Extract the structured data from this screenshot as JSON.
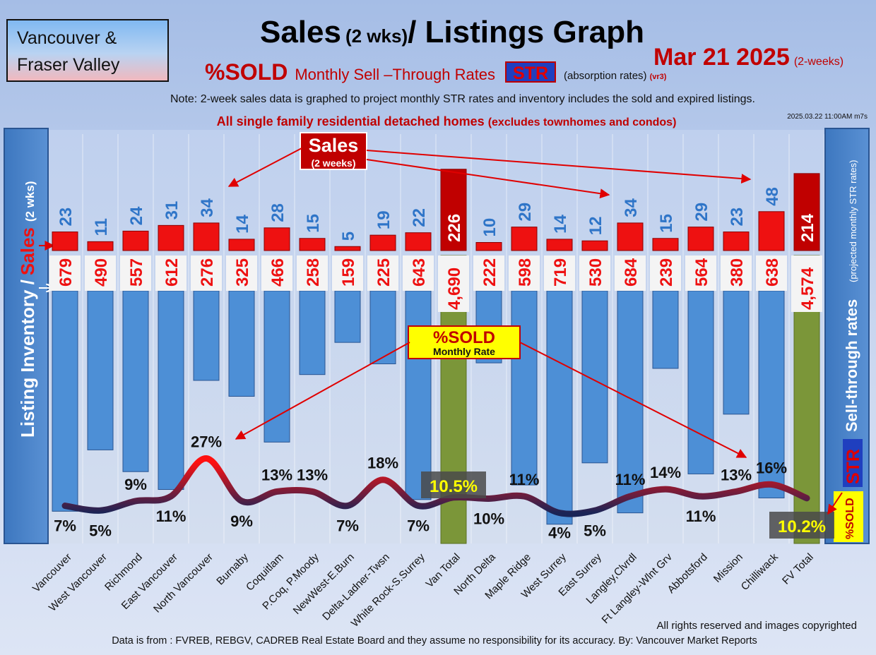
{
  "header": {
    "region_line1": "Vancouver &",
    "region_line2": "Fraser Valley",
    "title_main": "Sales",
    "title_paren": "(2 wks)",
    "title_rest": "/ Listings Graph",
    "date_main": "Mar 21  2025",
    "date_sub": "(2-weeks)",
    "str_line_sold": "%SOLD",
    "str_line_rest": "Monthly Sell –Through Rates",
    "str_badge": "STR",
    "str_absorption": "(absorption rates)",
    "str_version": "(vr3)",
    "note": "Note: 2-week sales data is graphed to project monthly STR rates and inventory includes the sold and expired listings.",
    "subtitle_main": "All single family residential detached homes",
    "subtitle_paren": "(excludes townhomes and condos)",
    "timestamp": "2025.03.22 11:00AM m7s"
  },
  "left_axis": {
    "inventory": "Listing Inventory /",
    "sales": "Sales",
    "paren": "(2  wks)"
  },
  "right_axis": {
    "main": "Sell-through rates",
    "paren": "(projected monthly STR rates)",
    "badge": "STR"
  },
  "callouts": {
    "sales_title": "Sales",
    "sales_sub": "(2 weeks)",
    "sold_title": "%SOLD",
    "sold_sub": "Monthly Rate"
  },
  "right_label": {
    "sold": "%SOLD"
  },
  "footer": {
    "rights": "All rights reserved and  images copyrighted",
    "source": "Data is from : FVREB, REBGV, CADREB Real Estate Board and they assume no responsibility for its accuracy. By: Vancouver Market Reports"
  },
  "colors": {
    "sales_bar": "#ee1111",
    "inventory_bar": "#4d8fd6",
    "total_bar": "#7b9639",
    "total_sales_bar": "#c00000",
    "title_red": "#c00000",
    "label_blue": "#2f75c8",
    "str_badge": "#1f3fbf"
  },
  "chart_data": {
    "type": "bar",
    "categories": [
      "Vancouver",
      "West Vancouver",
      "Richmond",
      "East Vancouver",
      "North Vancouver",
      "Burnaby",
      "Coquitlam",
      "P.Coq, P.Moody",
      "NewWest-E.Burn",
      "Delta-Ladner-Twsn",
      "White Rock-S.Surrey",
      "Van Total",
      "North Delta",
      "Maple Ridge",
      "West Surrey",
      "East Surrey",
      "Langley,Clvrdl",
      "Ft Langley-Wlnt Grv",
      "Abbotsford",
      "Mission",
      "Chilliwack",
      "FV Total"
    ],
    "series": [
      {
        "name": "Sales",
        "values": [
          23,
          11,
          24,
          31,
          34,
          14,
          28,
          15,
          5,
          19,
          22,
          226,
          10,
          29,
          14,
          12,
          34,
          15,
          29,
          23,
          48,
          214
        ]
      },
      {
        "name": "Listing Inventory",
        "values": [
          679,
          490,
          557,
          612,
          276,
          325,
          466,
          258,
          159,
          225,
          643,
          4690,
          222,
          598,
          719,
          530,
          684,
          239,
          564,
          380,
          638,
          4574
        ]
      },
      {
        "name": "%SOLD",
        "values": [
          7,
          5,
          9,
          11,
          27,
          9,
          13,
          13,
          7,
          18,
          7,
          10.5,
          10,
          11,
          4,
          5,
          11,
          14,
          11,
          13,
          16,
          10.2
        ]
      }
    ],
    "inventory_labels": [
      "679",
      "490",
      "557",
      "612",
      "276",
      "325",
      "466",
      "258",
      "159",
      "225",
      "643",
      "4,690",
      "222",
      "598",
      "719",
      "530",
      "684",
      "239",
      "564",
      "380",
      "638",
      "4,574"
    ],
    "sold_labels": [
      "7%",
      "5%",
      "9%",
      "11%",
      "27%",
      "9%",
      "13%",
      "13%",
      "7%",
      "18%",
      "7%",
      "10.5%",
      "10%",
      "11%",
      "4%",
      "5%",
      "11%",
      "14%",
      "11%",
      "13%",
      "16%",
      "10.2%"
    ],
    "total_indices": [
      11,
      21
    ],
    "title": "Sales (2 wks)/ Listings Graph",
    "grid": true
  }
}
